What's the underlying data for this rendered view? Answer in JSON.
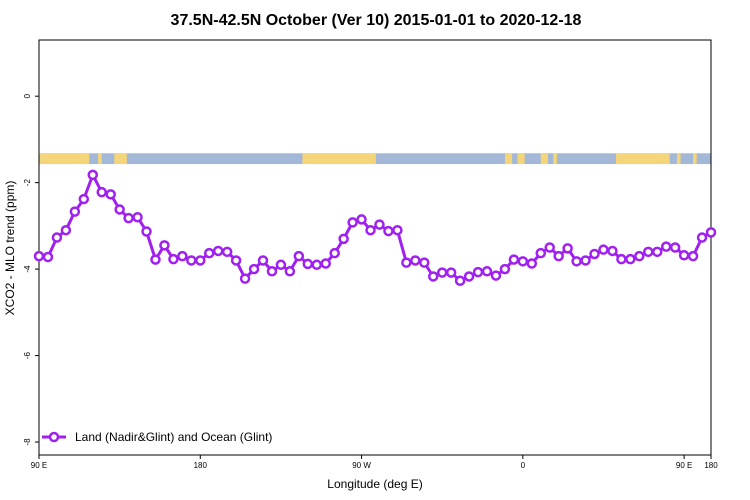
{
  "chart_data": {
    "type": "line",
    "title": "37.5N-42.5N October (Ver 10)   2015-01-01 to 2020-12-18",
    "xlabel": "Longitude (deg E)",
    "ylabel": "XCO2 - MLO trend (ppm)",
    "xlim": [
      90,
      465
    ],
    "ylim": [
      -8.3,
      1.3
    ],
    "x_ticks": [
      {
        "value": 90,
        "label": "90 E"
      },
      {
        "value": 180,
        "label": "180"
      },
      {
        "value": 270,
        "label": "90 W"
      },
      {
        "value": 360,
        "label": "0"
      },
      {
        "value": 450,
        "label": "90 E"
      },
      {
        "value": 540,
        "label": "180"
      }
    ],
    "y_ticks": [
      {
        "value": 0,
        "label": "0"
      },
      {
        "value": -2,
        "label": "-2"
      },
      {
        "value": -4,
        "label": "-4"
      },
      {
        "value": -6,
        "label": "-6"
      },
      {
        "value": -8,
        "label": "-8"
      }
    ],
    "grid": false,
    "legend_position": "bottom-left",
    "land_ocean_strip": {
      "y_top": -1.32,
      "y_bottom": -1.57,
      "ocean_color": "#a3b8d6",
      "land_color": "#f5d57a",
      "land_segments": [
        [
          90,
          118
        ],
        [
          123,
          125
        ],
        [
          132,
          139
        ],
        [
          237,
          278
        ],
        [
          350,
          354
        ],
        [
          357,
          361
        ],
        [
          370,
          374
        ],
        [
          377,
          379
        ],
        [
          412,
          442
        ],
        [
          446,
          448
        ],
        [
          455,
          457
        ]
      ]
    },
    "series": [
      {
        "name": "Land (Nadir&Glint) and Ocean (Glint)",
        "color": "#a020f0",
        "x": [
          90,
          95,
          100,
          105,
          110,
          115,
          120,
          125,
          130,
          135,
          140,
          145,
          150,
          155,
          160,
          165,
          170,
          175,
          180,
          185,
          190,
          195,
          200,
          205,
          210,
          215,
          220,
          225,
          230,
          235,
          240,
          245,
          250,
          255,
          260,
          265,
          270,
          275,
          280,
          285,
          290,
          295,
          300,
          305,
          310,
          315,
          320,
          325,
          330,
          335,
          340,
          345,
          350,
          355,
          360,
          365,
          370,
          375,
          380,
          385,
          390,
          395,
          400,
          405,
          410,
          415,
          420,
          425,
          430,
          435,
          440,
          445,
          450,
          455,
          460,
          465
        ],
        "y": [
          -3.7,
          -3.72,
          -3.27,
          -3.1,
          -2.67,
          -2.38,
          -1.82,
          -2.22,
          -2.27,
          -2.62,
          -2.82,
          -2.8,
          -3.13,
          -3.78,
          -3.45,
          -3.77,
          -3.7,
          -3.8,
          -3.8,
          -3.63,
          -3.58,
          -3.6,
          -3.8,
          -4.22,
          -4.0,
          -3.8,
          -4.05,
          -3.9,
          -4.05,
          -3.7,
          -3.88,
          -3.9,
          -3.87,
          -3.63,
          -3.3,
          -2.92,
          -2.85,
          -3.1,
          -2.97,
          -3.12,
          -3.1,
          -3.85,
          -3.8,
          -3.85,
          -4.17,
          -4.08,
          -4.08,
          -4.27,
          -4.17,
          -4.07,
          -4.05,
          -4.15,
          -4.0,
          -3.78,
          -3.82,
          -3.87,
          -3.63,
          -3.5,
          -3.7,
          -3.52,
          -3.82,
          -3.8,
          -3.65,
          -3.55,
          -3.58,
          -3.77,
          -3.77,
          -3.7,
          -3.6,
          -3.6,
          -3.48,
          -3.5,
          -3.68,
          -3.7,
          -3.27,
          -3.15
        ]
      }
    ]
  }
}
